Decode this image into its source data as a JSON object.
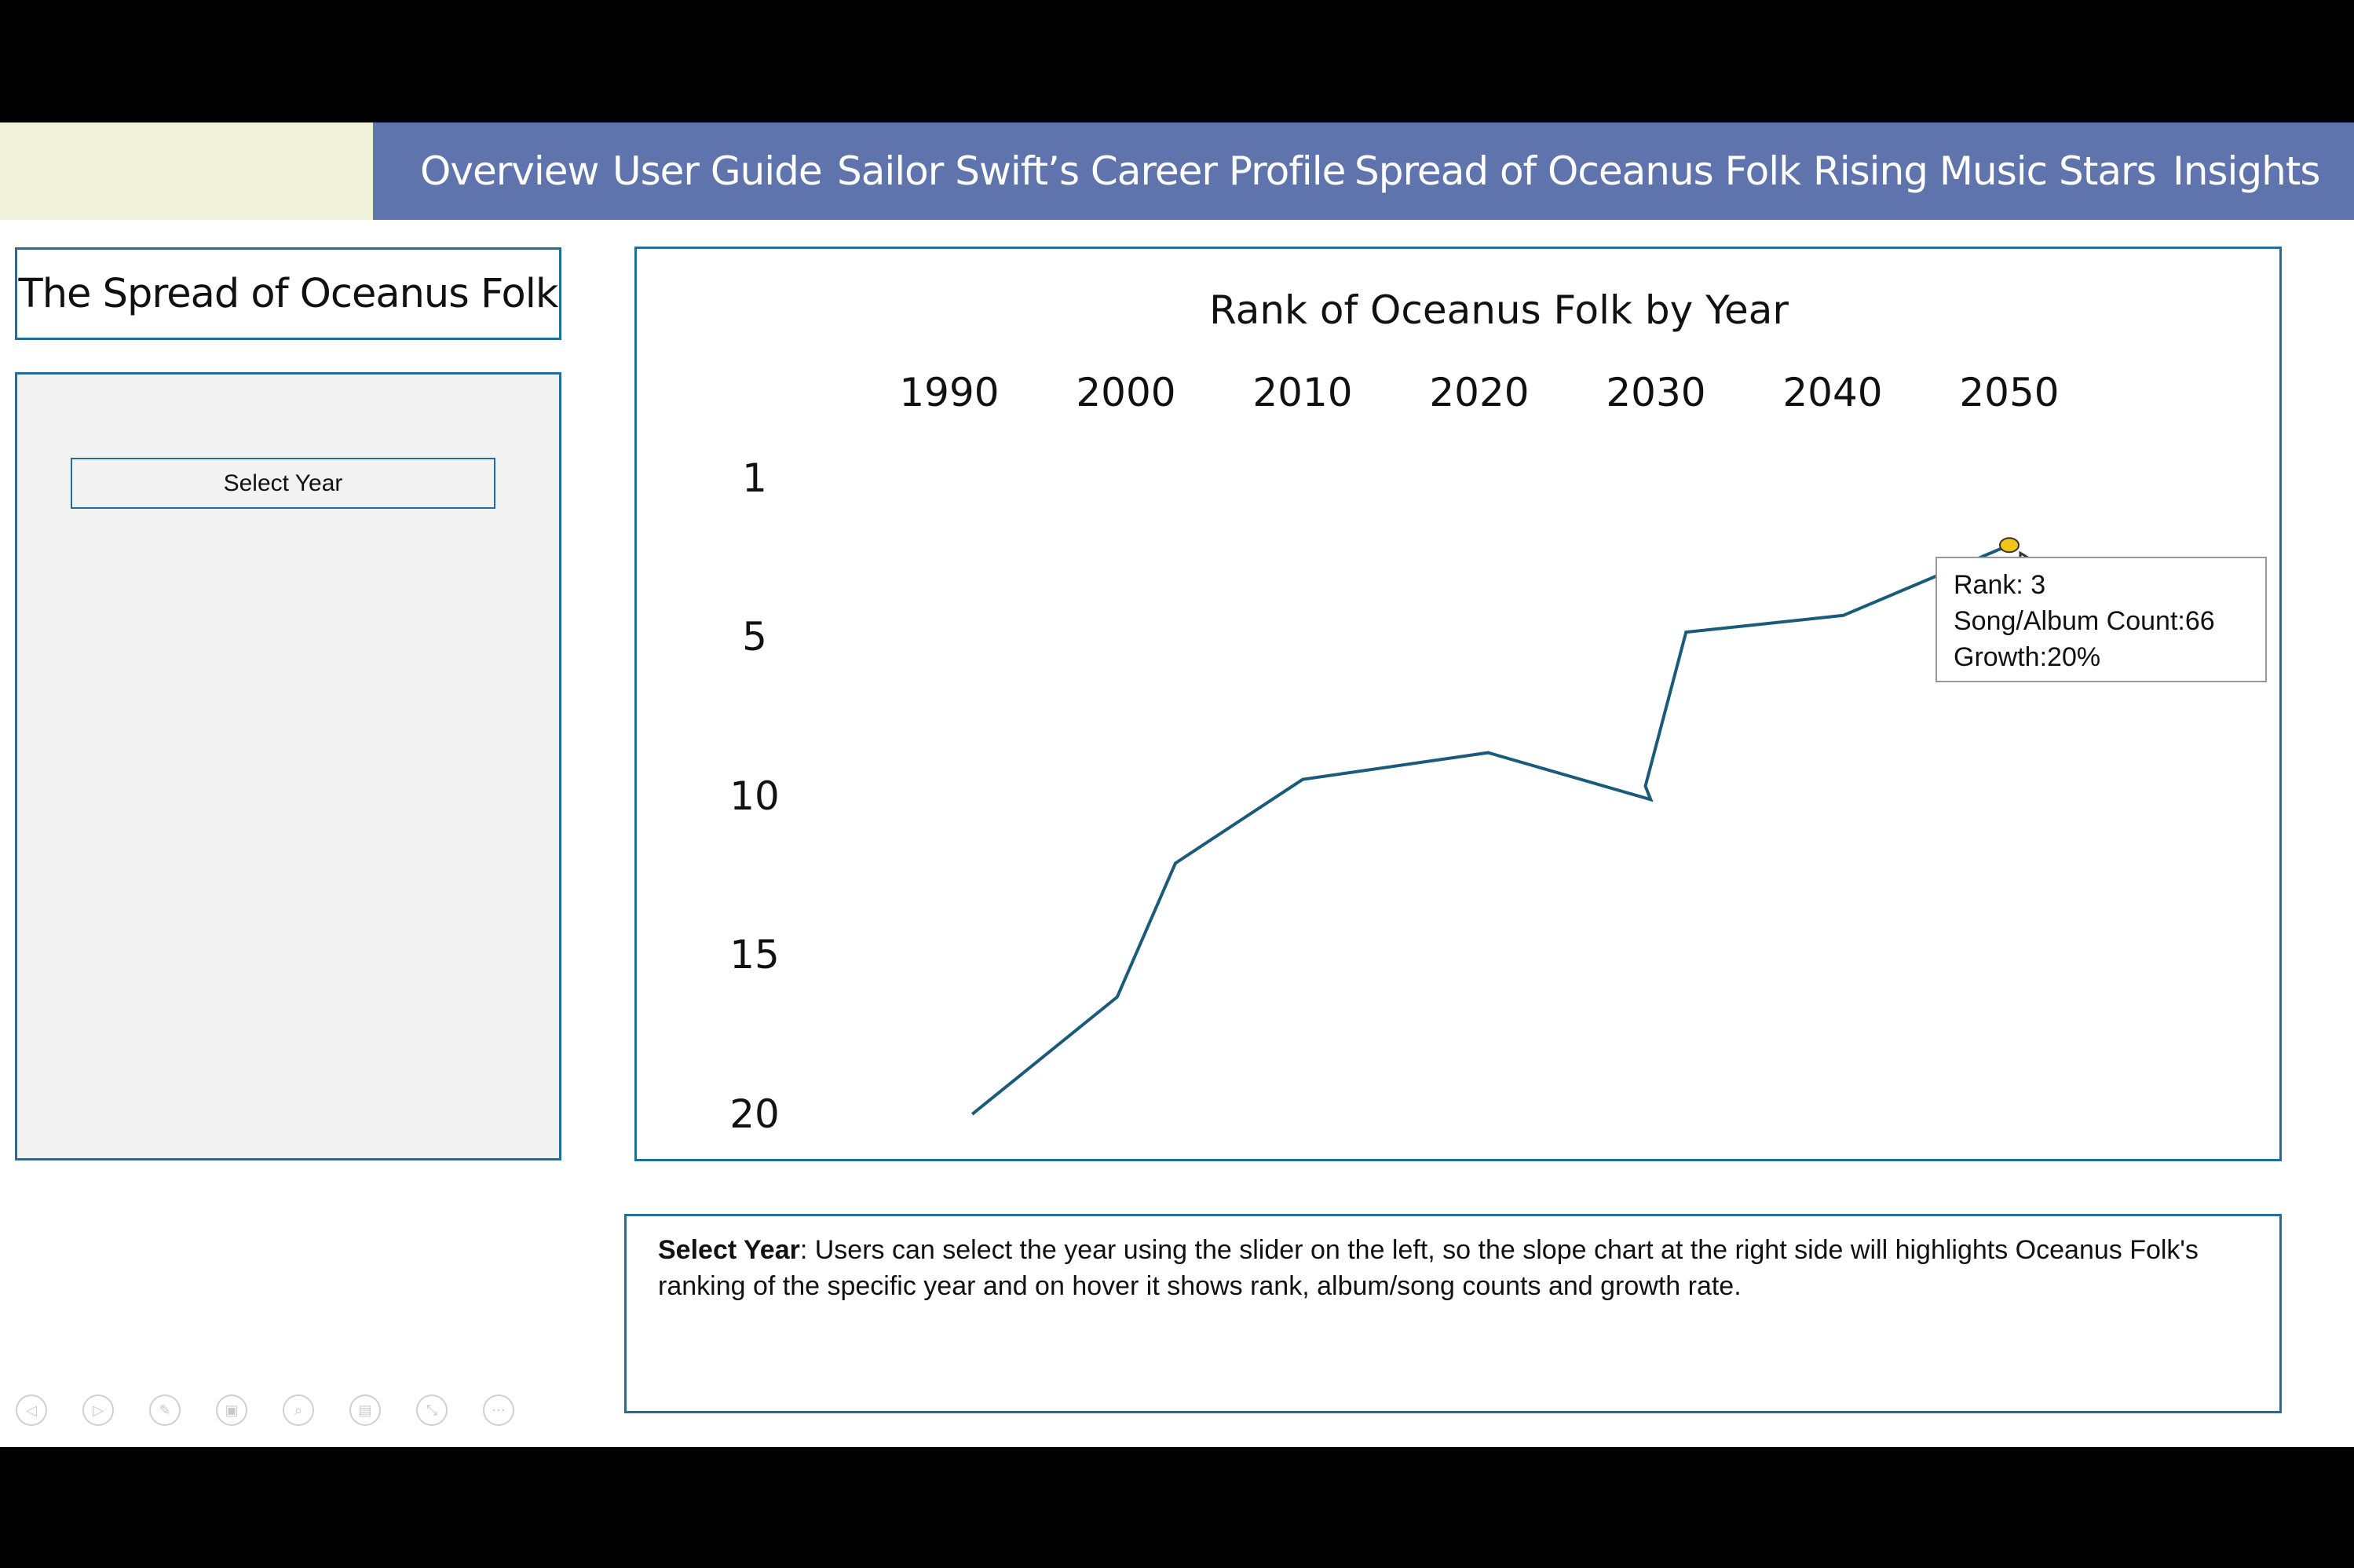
{
  "nav": {
    "items": [
      {
        "label": "Overview"
      },
      {
        "label": "User Guide"
      },
      {
        "label": "Sailor Swift’s Career Profile"
      },
      {
        "label": "Spread of Oceanus Folk"
      },
      {
        "label": "Rising Music Stars"
      },
      {
        "label": "Insights"
      }
    ]
  },
  "page": {
    "title": "The Spread of Oceanus Folk",
    "select_year_label": "Select Year"
  },
  "colors": {
    "nav_bar": "#5f73ad",
    "nav_left": "#f1f0d8",
    "panel_border": "#1f6e9c",
    "line": "#1a5a7a",
    "highlight_marker": "#f0c419"
  },
  "chart_data": {
    "type": "line",
    "title": "Rank of Oceanus Folk by Year",
    "x_ticks": [
      "1990",
      "2000",
      "2010",
      "2020",
      "2030",
      "2040",
      "2050"
    ],
    "y_ticks": [
      "1",
      "5",
      "10",
      "15",
      "20"
    ],
    "xlim": [
      1990,
      2050
    ],
    "ylim": [
      1,
      20
    ],
    "y_reversed": true,
    "x_axis_position": "top",
    "grid": false,
    "series": [
      {
        "x": [
          1991.3,
          1999.5,
          2002.8,
          2010,
          2020.5,
          2029.7,
          2029.4,
          2031.7,
          2040.6,
          2050
        ],
        "y": [
          20,
          16.5,
          12.5,
          10,
          9.2,
          10.6,
          10.2,
          5.6,
          5.1,
          3
        ]
      }
    ],
    "highlight": {
      "x": 2050,
      "y": 3
    },
    "tooltip": {
      "rank": "Rank: 3",
      "count": "Song/Album Count:66",
      "growth": "Growth:20%"
    }
  },
  "description": {
    "label": "Select Year",
    "text": ": Users can select the year using the slider on the left, so the slope chart at the right side will highlights Oceanus Folk's ranking of the specific year and on hover it shows rank, album/song counts and growth rate."
  },
  "toolbar": {
    "icons": [
      "previous-slide-icon",
      "next-slide-icon",
      "pen-icon",
      "slides-grid-icon",
      "zoom-icon",
      "subtitles-icon",
      "pointer-icon",
      "more-options-icon"
    ]
  }
}
